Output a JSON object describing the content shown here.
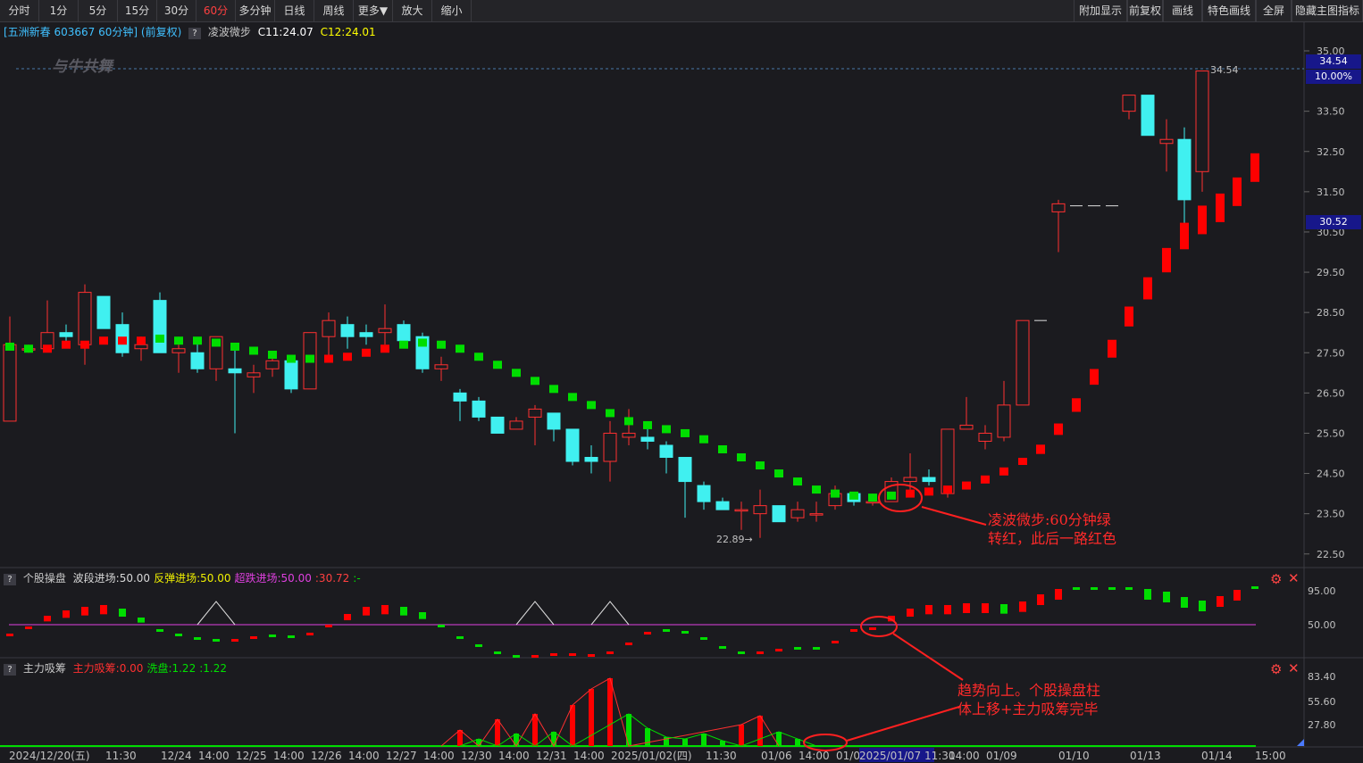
{
  "toolbar": {
    "left": [
      "分时",
      "1分",
      "5分",
      "15分",
      "30分",
      "60分",
      "多分钟",
      "日线",
      "周线",
      "更多▼",
      "放大",
      "缩小"
    ],
    "active_index": 5,
    "right": [
      "附加显示",
      "前复权",
      "画线",
      "特色画线",
      "全屏",
      "隐藏主图指标"
    ]
  },
  "main_panel": {
    "title": "[五洲新春 603667 60分钟] (前复权)",
    "indicator": "凌波微步",
    "c1": "C11:24.07",
    "c2": "C12:24.01",
    "watermark": "与牛共舞",
    "price_labels": [
      "35.00",
      "33.50",
      "32.50",
      "31.50",
      "30.50",
      "29.50",
      "28.50",
      "27.50",
      "26.50",
      "25.50",
      "24.50",
      "23.50",
      "22.50"
    ],
    "high_marker": "34.54",
    "tag_price": "34.54",
    "tag_pct": "10.00%",
    "tag_mid": "30.52",
    "low_marker": "22.89",
    "annotation": [
      "凌波微步:60分钟绿",
      "转红，此后一路红色"
    ]
  },
  "panel2": {
    "name": "个股操盘",
    "items": [
      {
        "text": "波段进场:50.00",
        "color": "#d8d8d8"
      },
      {
        "text": "反弹进场:50.00",
        "color": "#f0f000"
      },
      {
        "text": "超跌进场:50.00",
        "color": "#e040e0"
      },
      {
        "text": ":30.72",
        "color": "#ff4040"
      },
      {
        "text": ":-",
        "color": "#00e000"
      }
    ],
    "labels": [
      "95.00",
      "50.00"
    ]
  },
  "panel3": {
    "name": "主力吸筹",
    "items": [
      {
        "text": "主力吸筹:0.00",
        "color": "#ff3030"
      },
      {
        "text": "洗盘:1.22",
        "color": "#00e000"
      },
      {
        "text": ":1.22",
        "color": "#00e000"
      }
    ],
    "labels": [
      "83.40",
      "55.60",
      "27.80"
    ],
    "annotation": [
      "趋势向上。个股操盘柱",
      "体上移+主力吸筹完毕"
    ]
  },
  "xaxis": [
    "2024/12/20(五)",
    "11:30",
    "12/24",
    "14:00",
    "12/25",
    "14:00",
    "12/26",
    "14:00",
    "12/27",
    "14:00",
    "12/30",
    "14:00",
    "12/31",
    "14:00",
    "2025/01/02(四)",
    "11:30",
    "01/06",
    "14:00",
    "01/07",
    "2025/01/07 11:30",
    "14:00",
    "01/09",
    "01/10",
    "01/13",
    "01/14",
    "15:00"
  ],
  "colors": {
    "up": "#ff3030",
    "down": "#40f0f0",
    "bull": "#ff0000",
    "bear": "#00dd00",
    "magenta": "#e040e0"
  }
}
